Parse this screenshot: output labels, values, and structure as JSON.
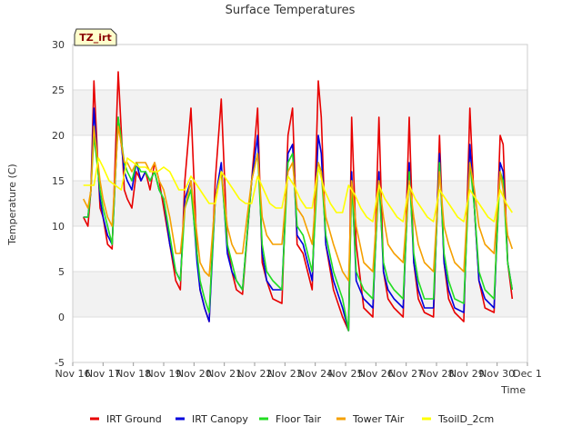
{
  "chart_data": {
    "type": "line",
    "title": "Surface Temperatures",
    "badge": "TZ_irt",
    "xlabel": "Time",
    "ylabel": "Temperature (C)",
    "ylim": [
      -5,
      30
    ],
    "yticks": [
      -5,
      0,
      5,
      10,
      15,
      20,
      25,
      30
    ],
    "xlim": [
      16,
      31
    ],
    "xticks": [
      {
        "x": 16,
        "label": "Nov 16"
      },
      {
        "x": 17,
        "label": "Nov 17"
      },
      {
        "x": 18,
        "label": "Nov 18"
      },
      {
        "x": 19,
        "label": "Nov 19"
      },
      {
        "x": 20,
        "label": "Nov 20"
      },
      {
        "x": 21,
        "label": "Nov 21"
      },
      {
        "x": 22,
        "label": "Nov 22"
      },
      {
        "x": 23,
        "label": "Nov 23"
      },
      {
        "x": 24,
        "label": "Nov 24"
      },
      {
        "x": 25,
        "label": "Nov 25"
      },
      {
        "x": 26,
        "label": "Nov 26"
      },
      {
        "x": 27,
        "label": "Nov 27"
      },
      {
        "x": 28,
        "label": "Nov 28"
      },
      {
        "x": 29,
        "label": "Nov 29"
      },
      {
        "x": 30,
        "label": "Nov 30"
      },
      {
        "x": 31,
        "label": "Dec 1"
      }
    ],
    "grid": "alternating horizontal bands",
    "legend_position": "bottom",
    "series": [
      {
        "name": "IRT Ground",
        "color": "#e80000",
        "x": [
          16.35,
          16.5,
          16.6,
          16.7,
          16.9,
          17.0,
          17.15,
          17.3,
          17.5,
          17.7,
          17.8,
          17.95,
          18.1,
          18.25,
          18.4,
          18.55,
          18.7,
          18.85,
          19.0,
          19.2,
          19.4,
          19.55,
          19.7,
          19.9,
          20.1,
          20.2,
          20.35,
          20.5,
          20.7,
          20.9,
          21.1,
          21.25,
          21.4,
          21.6,
          21.9,
          22.1,
          22.25,
          22.4,
          22.6,
          22.9,
          23.1,
          23.25,
          23.4,
          23.6,
          23.9,
          24.1,
          24.2,
          24.35,
          24.6,
          24.9,
          25.1,
          25.2,
          25.35,
          25.6,
          25.9,
          26.1,
          26.25,
          26.4,
          26.6,
          26.9,
          27.1,
          27.25,
          27.4,
          27.6,
          27.9,
          28.1,
          28.25,
          28.4,
          28.6,
          28.9,
          29.1,
          29.25,
          29.4,
          29.6,
          29.9,
          30.1,
          30.2,
          30.35,
          30.5
        ],
        "y": [
          11,
          10,
          14,
          26,
          12,
          11,
          8,
          7.5,
          27,
          14,
          13,
          12,
          16,
          15,
          16,
          14,
          17,
          15,
          12,
          8,
          4,
          3,
          15,
          23,
          7,
          3,
          1,
          -0.5,
          15,
          24,
          8,
          5,
          3,
          2.5,
          15,
          23,
          6,
          4,
          2,
          1.5,
          20,
          23,
          8,
          7,
          3,
          26,
          22,
          8,
          3,
          0,
          -1.5,
          22,
          8,
          1,
          0,
          22,
          5,
          2,
          1,
          0,
          22,
          6,
          2,
          0.5,
          0,
          20,
          6,
          2,
          0.5,
          -0.5,
          23,
          12,
          4,
          1,
          0.5,
          20,
          19,
          6,
          2
        ]
      },
      {
        "name": "IRT Canopy",
        "color": "#0000dd",
        "x": [
          16.35,
          16.5,
          16.6,
          16.7,
          16.9,
          17.0,
          17.15,
          17.3,
          17.5,
          17.7,
          17.8,
          17.95,
          18.1,
          18.25,
          18.4,
          18.55,
          18.7,
          18.85,
          19.0,
          19.2,
          19.4,
          19.55,
          19.7,
          19.9,
          20.1,
          20.2,
          20.35,
          20.5,
          20.7,
          20.9,
          21.1,
          21.25,
          21.4,
          21.6,
          21.9,
          22.1,
          22.25,
          22.4,
          22.6,
          22.9,
          23.1,
          23.25,
          23.4,
          23.6,
          23.9,
          24.1,
          24.2,
          24.35,
          24.6,
          24.9,
          25.1,
          25.2,
          25.35,
          25.6,
          25.9,
          26.1,
          26.25,
          26.4,
          26.6,
          26.9,
          27.1,
          27.25,
          27.4,
          27.6,
          27.9,
          28.1,
          28.25,
          28.4,
          28.6,
          28.9,
          29.1,
          29.25,
          29.4,
          29.6,
          29.9,
          30.1,
          30.2,
          30.35,
          30.5
        ],
        "y": [
          11,
          11,
          14,
          23,
          13,
          11,
          9,
          8,
          22,
          16,
          15,
          14,
          17,
          15,
          16,
          15,
          16,
          14,
          13,
          8,
          5,
          4,
          13,
          15,
          6,
          3,
          1,
          -0.5,
          13,
          17,
          7,
          5,
          4,
          3,
          15,
          20,
          7,
          4,
          3,
          3,
          18,
          19,
          9,
          8,
          4,
          20,
          18,
          8,
          4,
          1,
          -1.5,
          16,
          4,
          2,
          1,
          16,
          5,
          3,
          2,
          1,
          17,
          6,
          3,
          1,
          1,
          18,
          6,
          3,
          1,
          0.5,
          19,
          12,
          4,
          2,
          1,
          17,
          16,
          6,
          3
        ]
      },
      {
        "name": "Floor Tair",
        "color": "#22dd22",
        "x": [
          16.35,
          16.5,
          16.6,
          16.7,
          16.9,
          17.0,
          17.15,
          17.3,
          17.5,
          17.7,
          17.8,
          17.95,
          18.1,
          18.25,
          18.4,
          18.55,
          18.7,
          18.85,
          19.0,
          19.2,
          19.4,
          19.55,
          19.7,
          19.9,
          20.1,
          20.2,
          20.35,
          20.5,
          20.7,
          20.9,
          21.1,
          21.25,
          21.4,
          21.6,
          21.9,
          22.1,
          22.25,
          22.4,
          22.6,
          22.9,
          23.1,
          23.25,
          23.4,
          23.6,
          23.9,
          24.1,
          24.2,
          24.35,
          24.6,
          24.9,
          25.1,
          25.2,
          25.35,
          25.6,
          25.9,
          26.1,
          26.25,
          26.4,
          26.6,
          26.9,
          27.1,
          27.25,
          27.4,
          27.6,
          27.9,
          28.1,
          28.25,
          28.4,
          28.6,
          28.9,
          29.1,
          29.25,
          29.4,
          29.6,
          29.9,
          30.1,
          30.2,
          30.35,
          30.5
        ],
        "y": [
          11,
          11,
          14,
          20,
          14,
          12,
          10,
          8,
          22,
          17,
          16,
          15,
          17,
          16,
          16,
          15,
          16,
          14,
          13,
          9,
          5,
          4,
          12,
          14,
          7,
          4,
          2,
          0.5,
          13,
          16,
          8,
          6,
          4,
          3,
          15,
          18,
          8,
          5,
          4,
          3,
          17,
          18,
          10,
          9,
          5,
          17,
          16,
          9,
          5,
          2,
          -1.5,
          15,
          5,
          3,
          2,
          15,
          6,
          4,
          3,
          2,
          16,
          7,
          4,
          2,
          2,
          17,
          7,
          4,
          2,
          1.5,
          17,
          12,
          5,
          3,
          2,
          16,
          15,
          6,
          3
        ]
      },
      {
        "name": "Tower TAir",
        "color": "#f5a000",
        "x": [
          16.35,
          16.5,
          16.6,
          16.7,
          16.9,
          17.0,
          17.15,
          17.3,
          17.5,
          17.7,
          17.8,
          17.95,
          18.1,
          18.25,
          18.4,
          18.55,
          18.7,
          18.85,
          19.0,
          19.2,
          19.4,
          19.55,
          19.7,
          19.9,
          20.1,
          20.2,
          20.35,
          20.5,
          20.7,
          20.9,
          21.1,
          21.25,
          21.4,
          21.6,
          21.9,
          22.1,
          22.25,
          22.4,
          22.6,
          22.9,
          23.1,
          23.25,
          23.4,
          23.6,
          23.9,
          24.1,
          24.2,
          24.35,
          24.6,
          24.9,
          25.1,
          25.2,
          25.35,
          25.6,
          25.9,
          26.1,
          26.25,
          26.4,
          26.6,
          26.9,
          27.1,
          27.25,
          27.4,
          27.6,
          27.9,
          28.1,
          28.25,
          28.4,
          28.6,
          28.9,
          29.1,
          29.25,
          29.4,
          29.6,
          29.9,
          30.1,
          30.2,
          30.35,
          30.5
        ],
        "y": [
          13,
          12,
          14,
          21,
          15,
          13,
          11,
          10,
          21,
          17,
          17,
          16,
          17,
          17,
          17,
          16,
          17,
          15,
          14,
          11,
          7,
          7,
          12,
          15,
          9,
          6,
          5,
          4.5,
          13,
          16,
          10,
          8,
          7,
          7,
          15,
          18,
          11,
          9,
          8,
          8,
          16,
          17,
          12,
          11,
          8,
          17,
          16,
          11,
          8,
          5,
          4,
          15,
          10,
          6,
          5,
          15,
          11,
          8,
          7,
          6,
          15,
          11,
          8,
          6,
          5,
          16,
          10,
          8,
          6,
          5,
          17,
          14,
          10,
          8,
          7,
          16,
          14,
          9,
          7.5
        ]
      },
      {
        "name": "TsoilD_2cm",
        "color": "#ffff00",
        "x": [
          16.35,
          16.5,
          16.7,
          16.85,
          17.0,
          17.2,
          17.4,
          17.6,
          17.8,
          18.0,
          18.2,
          18.4,
          18.6,
          18.8,
          19.0,
          19.2,
          19.5,
          19.7,
          19.9,
          20.1,
          20.3,
          20.5,
          20.7,
          20.9,
          21.1,
          21.3,
          21.5,
          21.7,
          21.9,
          22.1,
          22.3,
          22.5,
          22.7,
          22.9,
          23.1,
          23.3,
          23.5,
          23.7,
          23.9,
          24.1,
          24.3,
          24.5,
          24.7,
          24.9,
          25.1,
          25.3,
          25.5,
          25.7,
          25.9,
          26.1,
          26.3,
          26.5,
          26.7,
          26.9,
          27.1,
          27.3,
          27.5,
          27.7,
          27.9,
          28.1,
          28.3,
          28.5,
          28.7,
          28.9,
          29.1,
          29.3,
          29.5,
          29.7,
          29.9,
          30.1,
          30.3,
          30.5
        ],
        "y": [
          14.5,
          14.5,
          14.5,
          17.5,
          16.5,
          15,
          14.5,
          14,
          17.5,
          17,
          16.5,
          16.5,
          16,
          16,
          16.5,
          16,
          14,
          14,
          15.5,
          14.5,
          13.5,
          12.5,
          12.5,
          16,
          15,
          14,
          13,
          12.5,
          12.5,
          15.5,
          14,
          12.5,
          12,
          12,
          15.5,
          14.5,
          13,
          12,
          12,
          16.5,
          14,
          12.5,
          11.5,
          11.5,
          14.5,
          13.5,
          12,
          11,
          10.5,
          14.5,
          13,
          12,
          11,
          10.5,
          14.5,
          13,
          12,
          11,
          10.5,
          14,
          13,
          12,
          11,
          10.5,
          14,
          13,
          12,
          11,
          10.5,
          14,
          12.5,
          11.5
        ]
      }
    ]
  }
}
